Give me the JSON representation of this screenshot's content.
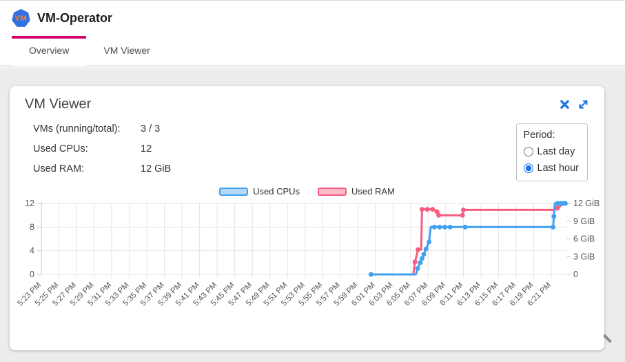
{
  "header": {
    "title": "VM-Operator",
    "logo_text": "VM"
  },
  "tabs": [
    {
      "label": "Overview",
      "active": true
    },
    {
      "label": "VM Viewer",
      "active": false
    }
  ],
  "panel": {
    "title": "VM Viewer",
    "stats": [
      {
        "label": "VMs (running/total):",
        "value": "3 / 3"
      },
      {
        "label": "Used CPUs:",
        "value": "12"
      },
      {
        "label": "Used RAM:",
        "value": "12 GiB"
      }
    ],
    "period": {
      "label": "Period:",
      "options": [
        {
          "label": "Last day",
          "selected": false
        },
        {
          "label": "Last hour",
          "selected": true
        }
      ]
    }
  },
  "colors": {
    "tab_indicator": "#d4006a",
    "icon_blue": "#1a73e8",
    "logo_bg": "#3371e3",
    "logo_orange": "#f47f20",
    "cpu_line": "#41a1f0",
    "cpu_fill": "#b4d8f8",
    "ram_line": "#f65d80",
    "ram_fill": "#fbb9c9",
    "grid": "#e4e4e4",
    "axis_text": "#555555"
  },
  "chart_data": {
    "type": "line",
    "title": "",
    "legend_position": "top",
    "grid": true,
    "x_tick_interval_minutes": 2,
    "x_tick_labels": [
      "5:23 PM",
      "5:25 PM",
      "5:27 PM",
      "5:29 PM",
      "5:31 PM",
      "5:33 PM",
      "5:35 PM",
      "5:37 PM",
      "5:39 PM",
      "5:41 PM",
      "5:43 PM",
      "5:45 PM",
      "5:47 PM",
      "5:49 PM",
      "5:51 PM",
      "5:53 PM",
      "5:55 PM",
      "5:57 PM",
      "5:59 PM",
      "6:01 PM",
      "6:03 PM",
      "6:05 PM",
      "6:07 PM",
      "6:09 PM",
      "6:11 PM",
      "6:13 PM",
      "6:15 PM",
      "6:17 PM",
      "6:19 PM",
      "6:21 PM"
    ],
    "ylim": [
      0,
      12
    ],
    "left_axis": {
      "ticks": [
        0,
        4,
        8,
        12
      ],
      "labels": [
        "0",
        "4",
        "8",
        "12"
      ]
    },
    "right_axis": {
      "ticks": [
        0,
        3,
        6,
        9,
        12
      ],
      "labels": [
        "0",
        "3 GiB",
        "6 GiB",
        "9 GiB",
        "12 GiB"
      ]
    },
    "series": [
      {
        "name": "Used RAM",
        "axis": "right",
        "unit": "GiB",
        "color": "#f65d80",
        "fill": "#fbb9c9",
        "points_minutes_after_first_tick_value_dot": [
          [
            37.5,
            0,
            0
          ],
          [
            42.3,
            0,
            0
          ],
          [
            42.5,
            2.1,
            1
          ],
          [
            42.85,
            4.2,
            1
          ],
          [
            43.2,
            4.2,
            0
          ],
          [
            43.3,
            11.0,
            1
          ],
          [
            43.9,
            11.0,
            1
          ],
          [
            44.5,
            11.0,
            1
          ],
          [
            45.0,
            10.6,
            1
          ],
          [
            45.2,
            10.0,
            1
          ],
          [
            47.9,
            10.0,
            1
          ],
          [
            48.0,
            10.9,
            1
          ],
          [
            58.4,
            10.9,
            0
          ],
          [
            58.7,
            11.2,
            1
          ],
          [
            59.3,
            11.9,
            0
          ]
        ]
      },
      {
        "name": "Used CPUs",
        "axis": "left",
        "unit": "CPUs",
        "color": "#41a1f0",
        "fill": "#b4d8f8",
        "points_minutes_after_first_tick_value_dot": [
          [
            37.5,
            0,
            1
          ],
          [
            42.6,
            0,
            0
          ],
          [
            42.8,
            1,
            1
          ],
          [
            43.1,
            2,
            1
          ],
          [
            43.3,
            2.7,
            1
          ],
          [
            43.5,
            3.4,
            1
          ],
          [
            43.75,
            4.3,
            1
          ],
          [
            44.1,
            5.5,
            1
          ],
          [
            44.3,
            8,
            0
          ],
          [
            44.7,
            8,
            1
          ],
          [
            45.3,
            8,
            1
          ],
          [
            45.9,
            8,
            1
          ],
          [
            46.5,
            8,
            1
          ],
          [
            48.2,
            8,
            1
          ],
          [
            58.2,
            8,
            1
          ],
          [
            58.3,
            9.8,
            1
          ],
          [
            58.4,
            12,
            0
          ],
          [
            58.7,
            12,
            1
          ],
          [
            59.1,
            12,
            1
          ],
          [
            59.4,
            12,
            1
          ],
          [
            59.6,
            12,
            1
          ]
        ]
      }
    ],
    "legend_order": [
      "Used CPUs",
      "Used RAM"
    ]
  }
}
